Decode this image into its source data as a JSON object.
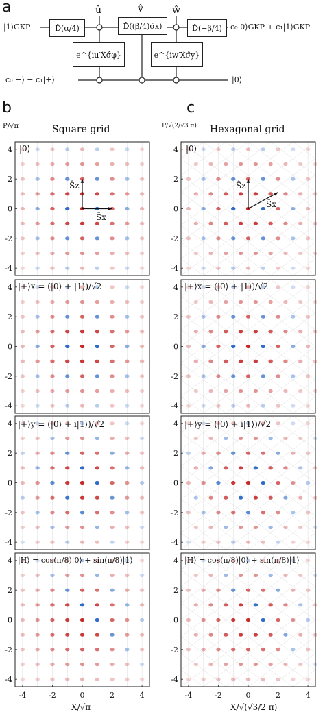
{
  "panels": {
    "a": "a",
    "b": "b",
    "c": "c"
  },
  "circuit": {
    "input_top": "|1⟩GKP",
    "output_top": "c₀|0⟩GKP + c₁|1⟩GKP",
    "input_bottom": "c₀|−⟩ − c₁|+⟩",
    "output_bottom": "|0⟩",
    "gate_d1": "D̂(α/4)",
    "gate_d2": "D̂((β/4)σ̂x)",
    "gate_d3": "D̂(−β/4)",
    "gate_u": "e^{iu′X̂σ̂φ}",
    "gate_w": "e^{iw′X̂σ̂y}",
    "meas_u": "û",
    "meas_v": "v̂",
    "meas_w": "ŵ"
  },
  "grids": {
    "square_title": "Square grid",
    "hex_title": "Hexagonal grid",
    "square_ylabel": "P/√π",
    "hex_ylabel": "P/√(2/√3 π)",
    "square_xlabel": "X/√π",
    "hex_xlabel": "X/√(√3/2 π)",
    "axis_sz": "Ŝz",
    "axis_sx": "Ŝx",
    "ticks": [
      "-4",
      "-2",
      "0",
      "2",
      "4"
    ]
  },
  "rows": [
    {
      "label": "|0⟩"
    },
    {
      "label": "|+⟩x = (|0⟩ + |1⟩)/√2"
    },
    {
      "label": "|+⟩y = (|0⟩ + i|1⟩)/√2"
    },
    {
      "label": "|H⟩ = cos(π/8)|0⟩ + sin(π/8)|1⟩"
    }
  ],
  "colors": {
    "positive": "#c62828",
    "negative": "#1e5fc4",
    "grid": "#dddddd"
  }
}
